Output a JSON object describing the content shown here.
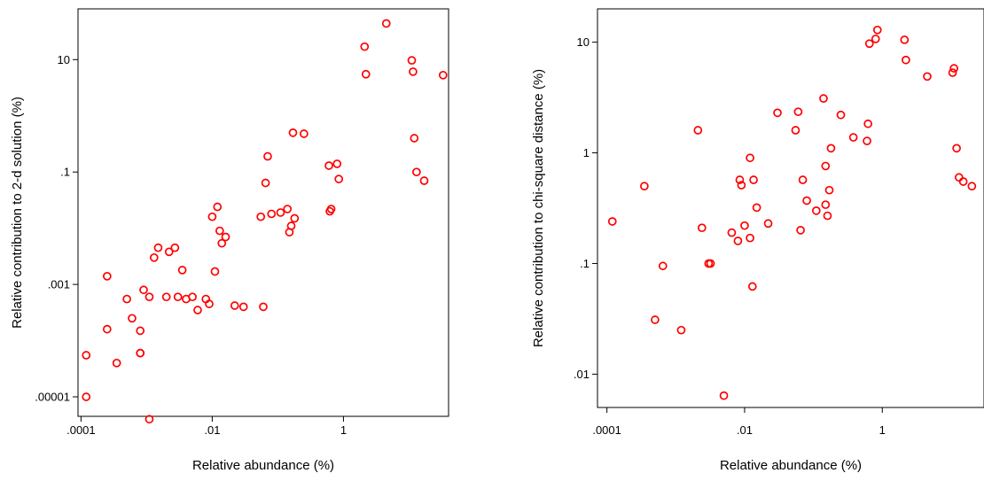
{
  "chart_data": [
    {
      "type": "scatter",
      "title": "",
      "xlabel": "Relative abundance (%)",
      "ylabel": "Relative contribution to 2-d solution (%)",
      "xscale": "log",
      "yscale": "log",
      "xlim": [
        9e-05,
        40
      ],
      "ylim": [
        4.5e-06,
        80
      ],
      "xticks": [
        0.0001,
        0.01,
        1
      ],
      "xtick_labels": [
        ".0001",
        ".01",
        "1"
      ],
      "yticks": [
        1e-05,
        0.001,
        0.1,
        10
      ],
      "ytick_labels": [
        ".00001",
        ".001",
        ".1",
        "10"
      ],
      "grid": false,
      "legend": "none",
      "marker_color": "#ff0000",
      "series": [
        {
          "x": [
            0.00012,
            0.00012,
            0.00025,
            0.00025,
            0.00035,
            0.0005,
            0.0006,
            0.0008,
            0.0008,
            0.0008,
            0.0009,
            0.0011,
            0.0011,
            0.0013,
            0.0015,
            0.002,
            0.0022,
            0.0027,
            0.003,
            0.0035,
            0.004,
            0.005,
            0.006,
            0.008,
            0.009,
            0.01,
            0.011,
            0.012,
            0.013,
            0.014,
            0.016,
            0.022,
            0.03,
            0.055,
            0.06,
            0.065,
            0.07,
            0.08,
            0.11,
            0.14,
            0.15,
            0.16,
            0.17,
            0.18,
            0.25,
            0.6,
            0.62,
            0.65,
            0.8,
            0.85,
            2.1,
            2.2,
            4.5,
            11,
            11.5,
            12,
            13,
            17,
            33
          ],
          "y": [
            5.5e-05,
            1e-05,
            0.0014,
            0.00016,
            4e-05,
            0.00055,
            0.00025,
            0.00015,
            6e-05,
            6e-05,
            0.0008,
            4e-06,
            0.0006,
            0.003,
            0.0045,
            0.0006,
            0.0038,
            0.0045,
            0.0006,
            0.0018,
            0.00055,
            0.0006,
            0.00035,
            0.00055,
            0.00045,
            0.016,
            0.0017,
            0.024,
            0.009,
            0.0054,
            0.007,
            0.00042,
            0.0004,
            0.016,
            0.0004,
            0.064,
            0.19,
            0.018,
            0.019,
            0.022,
            0.0085,
            0.011,
            0.5,
            0.015,
            0.48,
            0.13,
            0.02,
            0.022,
            0.14,
            0.075,
            17,
            5.5,
            44,
            9.7,
            6.1,
            0.4,
            0.1,
            0.07,
            5.3
          ]
        }
      ]
    },
    {
      "type": "scatter",
      "title": "",
      "xlabel": "Relative abundance (%)",
      "ylabel": "Relative contribution to chi-square distance (%)",
      "xscale": "log",
      "yscale": "log",
      "xlim": [
        7.3e-05,
        30
      ],
      "ylim": [
        0.005,
        20
      ],
      "xticks": [
        0.0001,
        0.01,
        1
      ],
      "xtick_labels": [
        ".0001",
        ".01",
        "1"
      ],
      "yticks": [
        0.01,
        0.1,
        1,
        10
      ],
      "ytick_labels": [
        ".01",
        ".1",
        "1",
        "10"
      ],
      "grid": false,
      "legend": "none",
      "marker_color": "#ff0000",
      "series": [
        {
          "x": [
            0.00012,
            0.00035,
            0.0005,
            0.00065,
            0.0012,
            0.0021,
            0.0024,
            0.003,
            0.0032,
            0.005,
            0.0065,
            0.008,
            0.0085,
            0.009,
            0.01,
            0.012,
            0.012,
            0.013,
            0.0135,
            0.015,
            0.022,
            0.03,
            0.055,
            0.06,
            0.065,
            0.07,
            0.08,
            0.11,
            0.14,
            0.15,
            0.15,
            0.16,
            0.17,
            0.18,
            0.25,
            0.38,
            0.6,
            0.62,
            0.65,
            0.8,
            0.85,
            2.1,
            2.2,
            4.5,
            10.5,
            11,
            12,
            13,
            15,
            20
          ],
          "y": [
            0.24,
            0.5,
            0.031,
            0.095,
            0.025,
            1.6,
            0.21,
            0.1,
            0.1,
            0.0064,
            0.19,
            0.16,
            0.57,
            0.51,
            0.22,
            0.17,
            0.9,
            0.062,
            0.57,
            0.32,
            0.23,
            2.3,
            1.6,
            2.35,
            0.2,
            0.57,
            0.37,
            0.3,
            3.1,
            0.76,
            0.34,
            0.27,
            0.46,
            1.1,
            2.2,
            1.38,
            1.28,
            1.83,
            9.7,
            10.7,
            12.9,
            10.5,
            6.9,
            4.9,
            5.3,
            5.8,
            1.1,
            0.6,
            0.55,
            0.5
          ]
        }
      ]
    }
  ]
}
